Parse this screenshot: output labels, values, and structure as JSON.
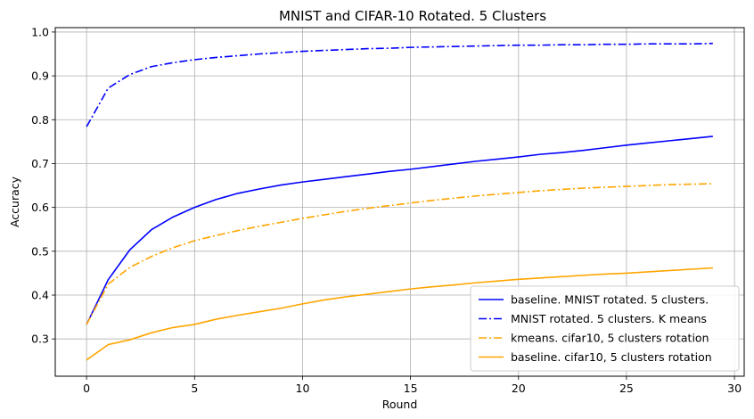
{
  "chart_data": {
    "type": "line",
    "title": "MNIST and CIFAR-10 Rotated. 5 Clusters",
    "xlabel": "Round",
    "ylabel": "Accuracy",
    "xlim": [
      -1.45,
      30.45
    ],
    "ylim": [
      0.215,
      1.01
    ],
    "xticks": [
      0,
      5,
      10,
      15,
      20,
      25,
      30
    ],
    "yticks": [
      0.3,
      0.4,
      0.5,
      0.6,
      0.7,
      0.8,
      0.9,
      1.0
    ],
    "grid": true,
    "legend_position": "lower-right",
    "x": [
      0,
      1,
      2,
      3,
      4,
      5,
      6,
      7,
      8,
      9,
      10,
      11,
      12,
      13,
      14,
      15,
      16,
      17,
      18,
      19,
      20,
      21,
      22,
      23,
      24,
      25,
      26,
      27,
      28,
      29
    ],
    "series": [
      {
        "name": "baseline. MNIST rotated. 5 clusters.",
        "color": "#0000ff",
        "style": "solid",
        "values": [
          0.333,
          0.435,
          0.503,
          0.549,
          0.578,
          0.6,
          0.618,
          0.632,
          0.642,
          0.651,
          0.658,
          0.664,
          0.67,
          0.676,
          0.682,
          0.687,
          0.693,
          0.699,
          0.705,
          0.71,
          0.715,
          0.721,
          0.725,
          0.73,
          0.736,
          0.742,
          0.747,
          0.752,
          0.757,
          0.762
        ]
      },
      {
        "name": "MNIST rotated. 5 clusters. K means",
        "color": "#0000ff",
        "style": "dashdot",
        "values": [
          0.784,
          0.872,
          0.903,
          0.921,
          0.93,
          0.937,
          0.942,
          0.946,
          0.95,
          0.953,
          0.956,
          0.958,
          0.96,
          0.962,
          0.963,
          0.965,
          0.966,
          0.967,
          0.968,
          0.969,
          0.97,
          0.97,
          0.971,
          0.971,
          0.972,
          0.972,
          0.973,
          0.973,
          0.973,
          0.974
        ]
      },
      {
        "name": "kmeans. cifar10, 5 clusters rotation",
        "color": "#ffa500",
        "style": "dashdot",
        "values": [
          0.333,
          0.425,
          0.463,
          0.488,
          0.508,
          0.524,
          0.536,
          0.547,
          0.557,
          0.566,
          0.575,
          0.583,
          0.591,
          0.598,
          0.604,
          0.61,
          0.616,
          0.621,
          0.626,
          0.63,
          0.634,
          0.638,
          0.641,
          0.644,
          0.646,
          0.648,
          0.65,
          0.652,
          0.653,
          0.654
        ]
      },
      {
        "name": "baseline. cifar10, 5 clusters rotation",
        "color": "#ffa500",
        "style": "solid",
        "values": [
          0.252,
          0.287,
          0.298,
          0.314,
          0.326,
          0.333,
          0.345,
          0.354,
          0.362,
          0.37,
          0.38,
          0.389,
          0.396,
          0.402,
          0.408,
          0.414,
          0.419,
          0.423,
          0.428,
          0.432,
          0.436,
          0.439,
          0.442,
          0.445,
          0.448,
          0.45,
          0.453,
          0.456,
          0.459,
          0.462
        ]
      }
    ]
  }
}
